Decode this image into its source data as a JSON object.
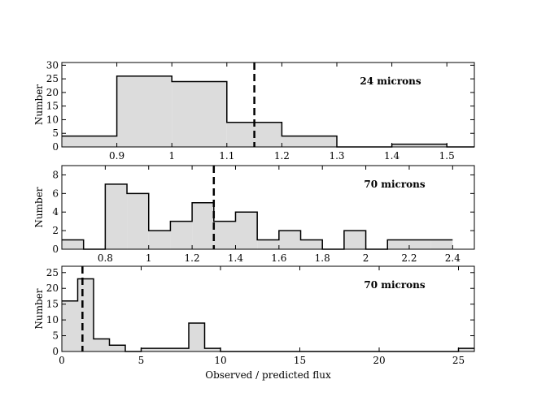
{
  "chart_data": [
    {
      "type": "bar",
      "title": "",
      "annotation": "24 microns",
      "xlabel": "",
      "ylabel": "Number",
      "xlim": [
        0.8,
        1.55
      ],
      "ylim": [
        0,
        31
      ],
      "xticks": [
        0.9,
        1.0,
        1.1,
        1.2,
        1.3,
        1.4,
        1.5
      ],
      "xtick_labels": [
        "0.9",
        "1",
        "1.1",
        "1.2",
        "1.3",
        "1.4",
        "1.5"
      ],
      "yticks": [
        0,
        5,
        10,
        15,
        20,
        25,
        30
      ],
      "ytick_labels": [
        "0",
        "5",
        "10",
        "15",
        "20",
        "25",
        "30"
      ],
      "bin_edges": [
        0.8,
        0.9,
        1.0,
        1.1,
        1.2,
        1.3,
        1.4,
        1.5,
        1.55
      ],
      "values": [
        4,
        26,
        24,
        9,
        4,
        0,
        1,
        0
      ],
      "reference_line_x": 1.15,
      "grid": false
    },
    {
      "type": "bar",
      "title": "",
      "annotation": "70 microns",
      "xlabel": "",
      "ylabel": "Number",
      "xlim": [
        0.6,
        2.5
      ],
      "ylim": [
        0,
        9
      ],
      "xticks": [
        0.8,
        1.0,
        1.2,
        1.4,
        1.6,
        1.8,
        2.0,
        2.2,
        2.4
      ],
      "xtick_labels": [
        "0.8",
        "1",
        "1.2",
        "1.4",
        "1.6",
        "1.8",
        "2",
        "2.2",
        "2.4"
      ],
      "yticks": [
        0,
        2,
        4,
        6,
        8
      ],
      "ytick_labels": [
        "0",
        "2",
        "4",
        "6",
        "8"
      ],
      "bin_edges": [
        0.6,
        0.7,
        0.8,
        0.9,
        1.0,
        1.1,
        1.2,
        1.3,
        1.4,
        1.5,
        1.6,
        1.7,
        1.8,
        1.9,
        2.0,
        2.1,
        2.2,
        2.3,
        2.4
      ],
      "values": [
        1,
        0,
        7,
        6,
        2,
        3,
        5,
        3,
        4,
        1,
        2,
        1,
        0,
        2,
        0,
        1,
        1,
        1
      ],
      "reference_line_x": 1.3,
      "grid": false
    },
    {
      "type": "bar",
      "title": "",
      "annotation": "70 microns",
      "xlabel": "Observed / predicted flux",
      "ylabel": "Number",
      "xlim": [
        0,
        26
      ],
      "ylim": [
        0,
        27
      ],
      "xticks": [
        0,
        5,
        10,
        15,
        20,
        25
      ],
      "xtick_labels": [
        "0",
        "5",
        "10",
        "15",
        "20",
        "25"
      ],
      "yticks": [
        0,
        5,
        10,
        15,
        20,
        25
      ],
      "ytick_labels": [
        "0",
        "5",
        "10",
        "15",
        "20",
        "25"
      ],
      "bin_edges": [
        0,
        1,
        2,
        3,
        4,
        5,
        6,
        7,
        8,
        9,
        10,
        11,
        12,
        13,
        14,
        15,
        16,
        17,
        18,
        19,
        20,
        21,
        22,
        23,
        24,
        25,
        26
      ],
      "values": [
        16,
        23,
        4,
        2,
        0,
        1,
        1,
        1,
        9,
        1,
        0,
        0,
        0,
        0,
        0,
        0,
        0,
        0,
        0,
        0,
        0,
        0,
        0,
        0,
        0,
        1
      ],
      "reference_line_x": 1.3,
      "grid": false
    }
  ]
}
